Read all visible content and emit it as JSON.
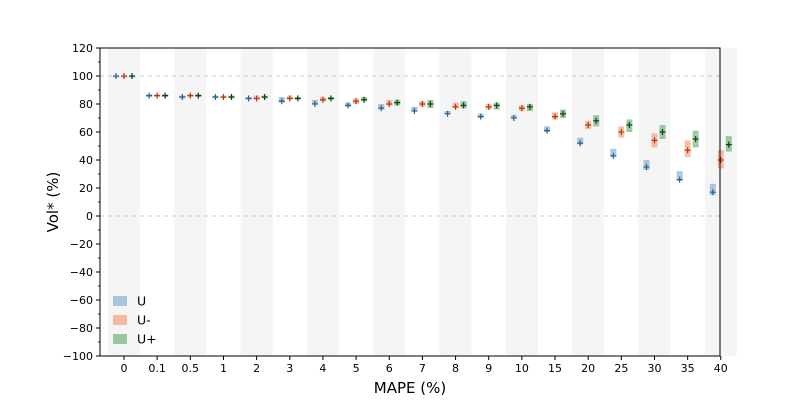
{
  "chart_data": {
    "type": "box",
    "xlabel": "MAPE (%)",
    "ylabel": "Vol* (%)",
    "ylim": [
      -100,
      120
    ],
    "yticks": [
      -100,
      -80,
      -60,
      -40,
      -20,
      0,
      20,
      40,
      60,
      80,
      100,
      120
    ],
    "reference_lines": [
      0,
      100
    ],
    "categories": [
      "0",
      "0.1",
      "0.5",
      "1",
      "2",
      "3",
      "4",
      "5",
      "6",
      "7",
      "8",
      "9",
      "10",
      "15",
      "20",
      "25",
      "30",
      "35",
      "40"
    ],
    "legend": {
      "placement": "lower-left"
    },
    "series": [
      {
        "name": "U",
        "color": "#5b93c7",
        "medians": [
          100,
          86,
          85,
          85,
          84,
          82,
          80,
          79,
          77,
          75,
          73,
          71,
          70,
          61,
          52,
          43,
          35,
          26,
          17
        ],
        "q1": [
          100,
          85,
          84,
          84,
          83,
          81,
          80,
          78,
          76,
          75,
          73,
          70,
          70,
          60,
          51,
          42,
          33,
          25,
          15
        ],
        "q3": [
          100,
          87,
          86,
          86,
          85,
          85,
          83,
          81,
          80,
          78,
          75,
          73,
          72,
          64,
          56,
          48,
          40,
          32,
          23
        ]
      },
      {
        "name": "U-",
        "color": "#f4804f",
        "medians": [
          100,
          86,
          86,
          85,
          84,
          84,
          83,
          82,
          80,
          80,
          78,
          78,
          77,
          71,
          65,
          60,
          54,
          47,
          40
        ],
        "q1": [
          100,
          85,
          85,
          84,
          83,
          83,
          82,
          80,
          79,
          78,
          77,
          76,
          75,
          69,
          62,
          56,
          49,
          42,
          34
        ],
        "q3": [
          100,
          87,
          87,
          86,
          86,
          86,
          85,
          84,
          83,
          82,
          81,
          80,
          79,
          74,
          68,
          64,
          59,
          54,
          47
        ]
      },
      {
        "name": "U+",
        "color": "#3b9a48",
        "medians": [
          100,
          86,
          86,
          85,
          85,
          84,
          84,
          83,
          81,
          80,
          79,
          79,
          78,
          73,
          68,
          65,
          60,
          55,
          51
        ],
        "q1": [
          100,
          85,
          85,
          84,
          84,
          83,
          83,
          82,
          79,
          77,
          77,
          76,
          75,
          70,
          64,
          60,
          55,
          49,
          46
        ],
        "q3": [
          100,
          87,
          87,
          86,
          86,
          85,
          85,
          85,
          83,
          83,
          82,
          81,
          80,
          76,
          72,
          69,
          65,
          61,
          57
        ]
      }
    ]
  }
}
